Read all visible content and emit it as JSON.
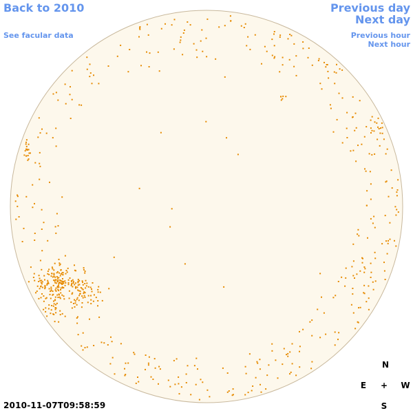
{
  "nav": {
    "back_label": "Back to 2010",
    "facular_label": "See facular data",
    "prev_day_label": "Previous day",
    "next_day_label": "Next day",
    "prev_hour_label": "Previous hour",
    "next_hour_label": "Next hour"
  },
  "timestamp": "2010-11-07T09:58:59",
  "compass": {
    "north": "N",
    "east": "E",
    "center": "+",
    "west": "W",
    "south": "S"
  },
  "colors": {
    "link": "#6495ed",
    "disk_fill": "#fdf8ec",
    "disk_border": "#c8b89c",
    "facula": "#e68a00"
  }
}
